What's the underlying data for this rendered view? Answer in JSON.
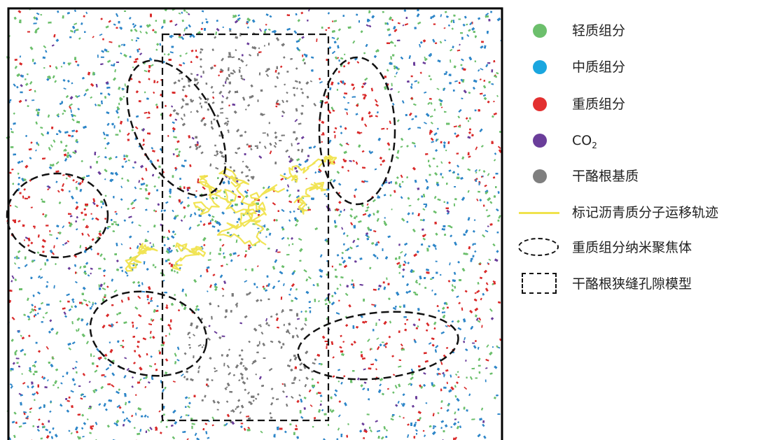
{
  "legend": {
    "items": [
      {
        "type": "dot",
        "color": "#6cbf6c",
        "label": "轻质组分"
      },
      {
        "type": "dot",
        "color": "#1aa6df",
        "label": "中质组分"
      },
      {
        "type": "dot",
        "color": "#e33030",
        "label": "重质组分"
      },
      {
        "type": "dot",
        "color": "#6a3d9a",
        "label": "CO",
        "sub": "2"
      },
      {
        "type": "dot",
        "color": "#7f7f7f",
        "label": "干酪根基质"
      },
      {
        "type": "line",
        "color": "#f0e34c",
        "label": "标记沥青质分子运移轨迹"
      },
      {
        "type": "ellipse",
        "color": "#111111",
        "label": "重质组分纳米聚焦体"
      },
      {
        "type": "rect",
        "color": "#111111",
        "label": "干酪根狭缝孔隙模型"
      }
    ]
  },
  "colors": {
    "light": "#6cbf6c",
    "medium": "#2e86c8",
    "heavy": "#d92b2b",
    "co2": "#6a3d9a",
    "kerogen": "#7a7a7a",
    "trajectory": "#f0e34c"
  }
}
